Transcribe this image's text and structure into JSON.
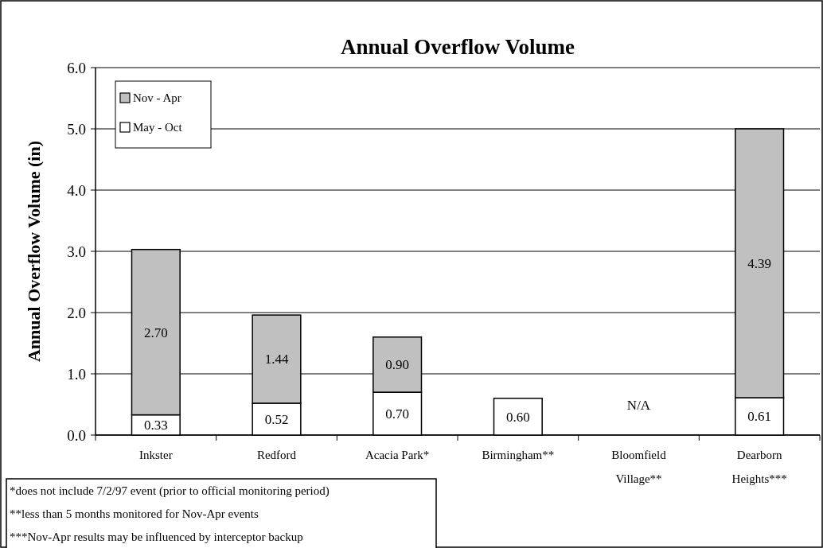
{
  "chart_data": {
    "type": "bar",
    "title": "Annual Overflow Volume",
    "ylabel": "Annual Overflow Volume (in)",
    "categories": [
      "Inkster",
      "Redford",
      "Acacia Park*",
      "Birmingham**",
      "Bloomfield Village**",
      "Dearborn Heights***"
    ],
    "series": [
      {
        "name": "May - Oct",
        "color": "#ffffff",
        "values": [
          0.33,
          0.52,
          0.7,
          0.6,
          null,
          0.61
        ],
        "value_labels": [
          "0.33",
          "0.52",
          "0.70",
          "0.60",
          "N/A",
          "0.61"
        ]
      },
      {
        "name": "Nov - Apr",
        "color": "#c0c0c0",
        "values": [
          2.7,
          1.44,
          0.9,
          null,
          null,
          4.39
        ],
        "value_labels": [
          "2.70",
          "1.44",
          "0.90",
          null,
          null,
          "4.39"
        ]
      }
    ],
    "stacked": true,
    "ylim": [
      0,
      6
    ],
    "yticks": [
      {
        "value": 0,
        "label": "0.0"
      },
      {
        "value": 1,
        "label": "1.0"
      },
      {
        "value": 2,
        "label": "2.0"
      },
      {
        "value": 3,
        "label": "3.0"
      },
      {
        "value": 4,
        "label": "4.0"
      },
      {
        "value": 5,
        "label": "5.0"
      },
      {
        "value": 6,
        "label": "6.0"
      }
    ],
    "grid": "y",
    "legend": "top left",
    "annotations": [
      "*does not include 7/2/97 event (prior to official monitoring period)",
      "**less than 5 months monitored for Nov-Apr events",
      "***Nov-Apr results may be influenced by interceptor backup"
    ]
  }
}
